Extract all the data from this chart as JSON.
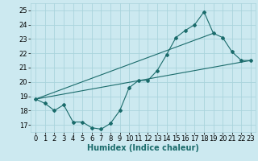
{
  "xlabel": "Humidex (Indice chaleur)",
  "background_color": "#cce9f0",
  "grid_color": "#aad4dc",
  "line_color": "#1a6b6b",
  "xlim": [
    -0.5,
    23.5
  ],
  "ylim": [
    16.5,
    25.5
  ],
  "xticks": [
    0,
    1,
    2,
    3,
    4,
    5,
    6,
    7,
    8,
    9,
    10,
    11,
    12,
    13,
    14,
    15,
    16,
    17,
    18,
    19,
    20,
    21,
    22,
    23
  ],
  "yticks": [
    17,
    18,
    19,
    20,
    21,
    22,
    23,
    24,
    25
  ],
  "line1_x": [
    0,
    1,
    2,
    3,
    4,
    5,
    6,
    7,
    8,
    9,
    10,
    11,
    12,
    13,
    14,
    15,
    16,
    17,
    18,
    19,
    20,
    21,
    22,
    23
  ],
  "line1_y": [
    18.8,
    18.5,
    18.0,
    18.4,
    17.2,
    17.2,
    16.8,
    16.7,
    17.1,
    18.0,
    19.6,
    20.1,
    20.1,
    20.8,
    21.9,
    23.1,
    23.6,
    24.0,
    24.9,
    23.4,
    23.1,
    22.1,
    21.5,
    21.5
  ],
  "line2_x": [
    0,
    23
  ],
  "line2_y": [
    18.8,
    21.5
  ],
  "line3_x": [
    0,
    19
  ],
  "line3_y": [
    18.8,
    23.4
  ],
  "marker_style": "D",
  "marker_size": 2.0,
  "linewidth": 0.8,
  "tick_fontsize": 6,
  "xlabel_fontsize": 7
}
